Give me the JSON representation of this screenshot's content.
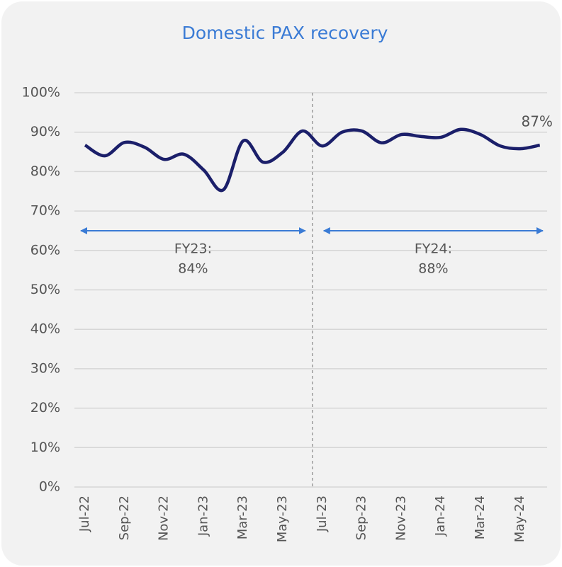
{
  "chart_data": {
    "type": "line",
    "title": "Domestic PAX recovery",
    "categories": [
      "Jul-22",
      null,
      "Sep-22",
      null,
      "Nov-22",
      null,
      "Jan-23",
      null,
      "Mar-23",
      null,
      "May-23",
      null,
      "Jul-23",
      null,
      "Sep-23",
      null,
      "Nov-23",
      null,
      "Jan-24",
      null,
      "Mar-24",
      null,
      "May-24",
      null
    ],
    "series": [
      {
        "color": "#1b1f6a",
        "values": [
          86.7,
          84,
          87.4,
          86.2,
          83.1,
          84.4,
          80.4,
          75.4,
          87.8,
          82.4,
          84.9,
          90.3,
          86.5,
          90,
          90.3,
          87.3,
          89.4,
          88.9,
          88.7,
          90.7,
          89.4,
          86.5,
          85.8,
          86.7
        ],
        "value_labels": [
          null,
          null,
          null,
          null,
          null,
          null,
          null,
          null,
          null,
          null,
          null,
          null,
          null,
          null,
          null,
          null,
          null,
          null,
          null,
          null,
          null,
          null,
          null,
          "87%"
        ]
      }
    ],
    "ylim": [
      0,
      100
    ],
    "yticks": [
      {
        "value": 0,
        "label": "0%"
      },
      {
        "value": 10,
        "label": "10%"
      },
      {
        "value": 20,
        "label": "20%"
      },
      {
        "value": 30,
        "label": "30%"
      },
      {
        "value": 40,
        "label": "40%"
      },
      {
        "value": 50,
        "label": "50%"
      },
      {
        "value": 60,
        "label": "60%"
      },
      {
        "value": 70,
        "label": "70%"
      },
      {
        "value": 80,
        "label": "80%"
      },
      {
        "value": 90,
        "label": "90%"
      },
      {
        "value": 100,
        "label": "100%"
      }
    ],
    "grid": true,
    "periods": [
      {
        "label": "FY23:",
        "average": "84%"
      },
      {
        "label": "FY24:",
        "average": "88%"
      }
    ]
  }
}
